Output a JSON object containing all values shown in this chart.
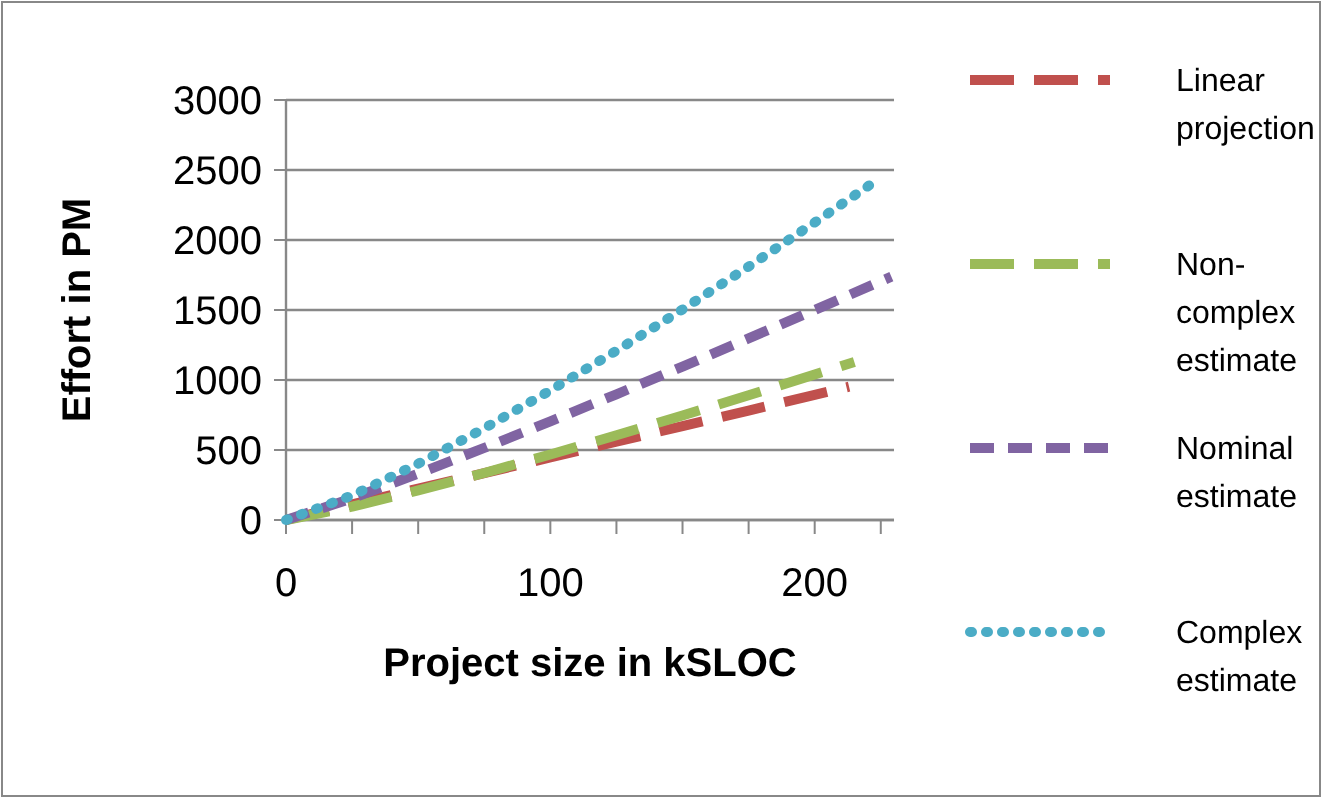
{
  "chart_data": {
    "type": "line",
    "xlabel": "Project size in kSLOC",
    "ylabel": "Effort in PM",
    "xlim": [
      0,
      230
    ],
    "xticks": [
      0,
      {
        "value": 25,
        "label": null
      },
      {
        "value": 50,
        "label": null
      },
      {
        "value": 75,
        "label": null
      },
      100,
      {
        "value": 125,
        "label": null
      },
      {
        "value": 150,
        "label": null
      },
      {
        "value": 175,
        "label": null
      },
      200,
      {
        "value": 225,
        "label": null
      }
    ],
    "ylim": [
      0,
      3000
    ],
    "yticks": [
      0,
      500,
      1000,
      1500,
      2000,
      2500,
      3000
    ],
    "grid": "y",
    "legend": "right",
    "marker": "none",
    "series": [
      {
        "name": "Linear projection",
        "color": "#c0504d",
        "line_style": "dashed",
        "x": [
          0,
          25,
          50,
          75,
          100,
          125,
          150,
          175,
          200,
          213
        ],
        "values": [
          0,
          112,
          224,
          335,
          447,
          559,
          671,
          782,
          894,
          952
        ]
      },
      {
        "name": "Non-complex estimate",
        "color": "#9bbb59",
        "line_style": "dashed",
        "x": [
          0,
          25,
          50,
          75,
          100,
          125,
          150,
          175,
          200,
          215
        ],
        "values": [
          0,
          95,
          211,
          336,
          468,
          605,
          746,
          891,
          1039,
          1129
        ]
      },
      {
        "name": "Nominal estimate",
        "color": "#8064a2",
        "line_style": "dashed",
        "x": [
          0,
          25,
          50,
          75,
          100,
          125,
          150,
          175,
          200,
          229
        ],
        "values": [
          0,
          155,
          331,
          515,
          705,
          898,
          1096,
          1297,
          1500,
          1738
        ]
      },
      {
        "name": "Complex estimate",
        "color": "#4bacc6",
        "line_style": "dotted",
        "x": [
          0,
          25,
          50,
          75,
          100,
          125,
          150,
          175,
          200,
          221
        ],
        "values": [
          0,
          175,
          402,
          655,
          925,
          1209,
          1504,
          1810,
          2125,
          2395
        ]
      }
    ]
  }
}
